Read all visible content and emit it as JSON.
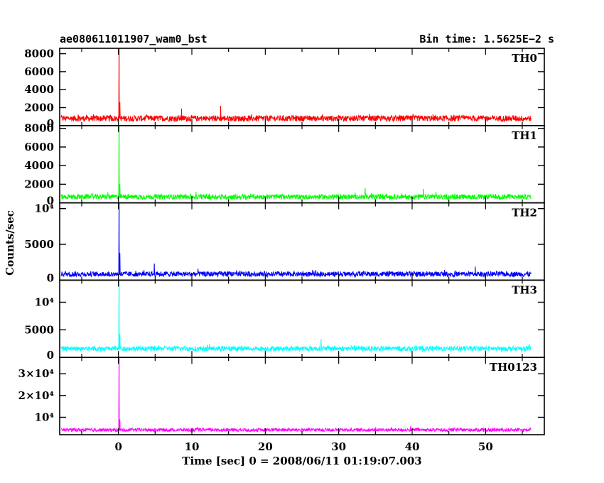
{
  "header": {
    "left": "ae080611011907_wam0_bst",
    "right": "Bin time: 1.5625E−2 s"
  },
  "xlabel": "Time [sec] 0 = 2008/06/11 01:19:07.003",
  "ylabel": "Counts/sec",
  "chart_data": {
    "type": "line",
    "title": "ae080611011907_wam0_bst",
    "subtitle": "Bin time: 1.5625E−2 s",
    "xlabel": "Time [sec] 0 = 2008/06/11 01:19:07.003",
    "ylabel": "Counts/sec",
    "xlim": [
      -8,
      58
    ],
    "x_ticks": [
      "0",
      "10",
      "20",
      "30",
      "40",
      "50"
    ],
    "x_tick_values": [
      0,
      10,
      20,
      30,
      40,
      50
    ],
    "grid": false,
    "series": [
      {
        "name": "TH0",
        "color": "#ff0000",
        "ylim": [
          0,
          8600
        ],
        "yticks": [
          {
            "v": 0,
            "t": "0"
          },
          {
            "v": 2000,
            "t": "2000"
          },
          {
            "v": 4000,
            "t": "4000"
          },
          {
            "v": 6000,
            "t": "6000"
          },
          {
            "v": 8000,
            "t": "8000"
          }
        ],
        "x_range": [
          -7.8,
          56.2
        ],
        "baseline": 800,
        "noise": 550,
        "spikes": [
          {
            "x": 0.1,
            "y": 8600
          },
          {
            "x": 0.2,
            "y": 2600
          },
          {
            "x": 13.9,
            "y": 2200
          },
          {
            "x": 8.6,
            "y": 1900
          }
        ]
      },
      {
        "name": "TH1",
        "color": "#00ff00",
        "ylim": [
          0,
          8300
        ],
        "yticks": [
          {
            "v": 0,
            "t": "0"
          },
          {
            "v": 2000,
            "t": "2000"
          },
          {
            "v": 4000,
            "t": "4000"
          },
          {
            "v": 6000,
            "t": "6000"
          },
          {
            "v": 8000,
            "t": "8000"
          }
        ],
        "x_range": [
          -7.8,
          56.2
        ],
        "baseline": 650,
        "noise": 450,
        "spikes": [
          {
            "x": 0.1,
            "y": 8300
          },
          {
            "x": 0.2,
            "y": 2000
          },
          {
            "x": 33.6,
            "y": 1600
          },
          {
            "x": 41.5,
            "y": 1500
          }
        ]
      },
      {
        "name": "TH2",
        "color": "#0000ff",
        "ylim": [
          0,
          10800
        ],
        "yticks": [
          {
            "v": 0,
            "t": "0"
          },
          {
            "v": 5000,
            "t": "5000"
          },
          {
            "v": 10000,
            "t": "10⁴"
          }
        ],
        "x_range": [
          -7.8,
          56.2
        ],
        "baseline": 850,
        "noise": 600,
        "spikes": [
          {
            "x": 0.1,
            "y": 10800
          },
          {
            "x": 0.2,
            "y": 3800
          },
          {
            "x": 4.9,
            "y": 2300
          },
          {
            "x": 48.6,
            "y": 1900
          }
        ]
      },
      {
        "name": "TH3",
        "color": "#00ffff",
        "ylim": [
          0,
          14000
        ],
        "yticks": [
          {
            "v": 0,
            "t": "0"
          },
          {
            "v": 5000,
            "t": "5000"
          },
          {
            "v": 10000,
            "t": "10⁴"
          }
        ],
        "x_range": [
          -7.8,
          56.2
        ],
        "baseline": 1600,
        "noise": 750,
        "spikes": [
          {
            "x": 0.1,
            "y": 14000
          },
          {
            "x": 0.2,
            "y": 4200
          },
          {
            "x": 27.6,
            "y": 3300
          }
        ]
      },
      {
        "name": "TH0123",
        "color": "#ff00ff",
        "ylim": [
          2000,
          37500
        ],
        "yticks": [
          {
            "v": 10000,
            "t": "10⁴"
          },
          {
            "v": 20000,
            "t": "2×10⁴"
          },
          {
            "v": 30000,
            "t": "3×10⁴"
          }
        ],
        "x_range": [
          -7.8,
          56.2
        ],
        "baseline": 4200,
        "noise": 1300,
        "spikes": [
          {
            "x": 0.1,
            "y": 37500
          },
          {
            "x": 0.2,
            "y": 9000
          }
        ]
      }
    ]
  }
}
